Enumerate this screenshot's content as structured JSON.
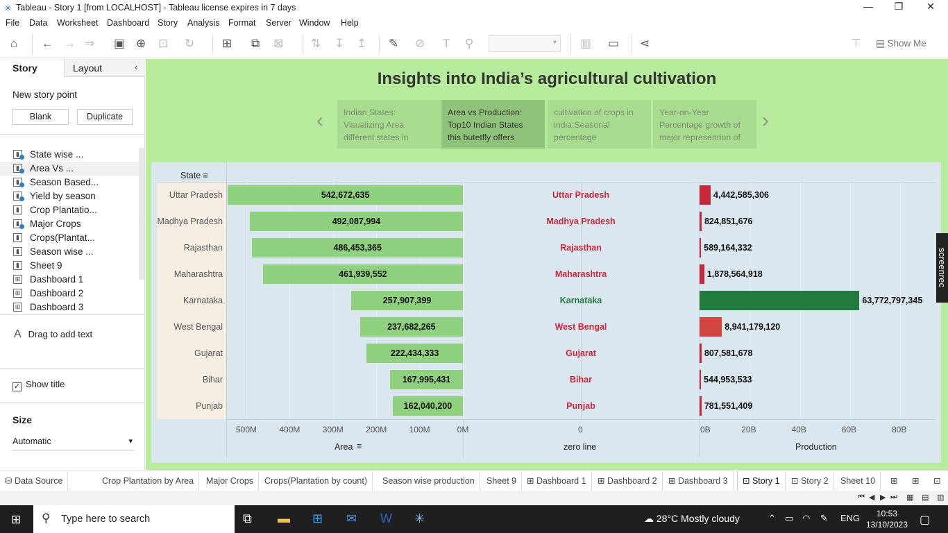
{
  "window": {
    "title": "Tableau - Story 1 [from LOCALHOST] - Tableau license expires in 7 days"
  },
  "menu": [
    "File",
    "Data",
    "Worksheet",
    "Dashboard",
    "Story",
    "Analysis",
    "Format",
    "Server",
    "Window",
    "Help"
  ],
  "toolbar": {
    "show_me": "Show Me"
  },
  "left_pane": {
    "tab_story": "Story",
    "tab_layout": "Layout",
    "new_story_point": "New story point",
    "blank": "Blank",
    "duplicate": "Duplicate",
    "items": [
      {
        "label": "State wise ...",
        "type": "sheet",
        "used": true
      },
      {
        "label": "Area Vs ...",
        "type": "sheet",
        "used": true
      },
      {
        "label": "Season Based...",
        "type": "sheet",
        "used": true
      },
      {
        "label": "Yield by season",
        "type": "sheet",
        "used": true
      },
      {
        "label": "Crop Plantatio...",
        "type": "sheet",
        "used": false
      },
      {
        "label": "Major Crops",
        "type": "sheet",
        "used": true
      },
      {
        "label": "Crops(Plantat...",
        "type": "sheet",
        "used": false
      },
      {
        "label": "Season wise ...",
        "type": "sheet",
        "used": false
      },
      {
        "label": "Sheet 9",
        "type": "sheet",
        "used": false
      },
      {
        "label": "Dashboard 1",
        "type": "dashboard",
        "used": false
      },
      {
        "label": "Dashboard 2",
        "type": "dashboard",
        "used": false
      },
      {
        "label": "Dashboard 3",
        "type": "dashboard",
        "used": false
      }
    ],
    "drag_text": "Drag to add text",
    "show_title": "Show title",
    "size_label": "Size",
    "size_value": "Automatic"
  },
  "story": {
    "title": "Insights into India’s agricultural cultivation",
    "points": [
      "Indian States: Visualizing Area different states in",
      "Area vs Production: Top10 Indian States this butetfly offers",
      "cultivation of crops in india:Seasonal percentage",
      "Year-on-Year Percentage  growth of major represenrion of"
    ],
    "active_point": 1
  },
  "viz": {
    "row_header": "State",
    "area_axis_title": "Area",
    "zero_axis_title": "zero line",
    "production_axis_title": "Production",
    "area_ticks": [
      "500M",
      "400M",
      "300M",
      "200M",
      "100M",
      "0M"
    ],
    "zero_tick": "0",
    "production_ticks": [
      "0B",
      "20B",
      "40B",
      "60B",
      "80B"
    ]
  },
  "chart_data": {
    "type": "bar",
    "categories": [
      "Uttar Pradesh",
      "Madhya Pradesh",
      "Rajasthan",
      "Maharashtra",
      "Karnataka",
      "West Bengal",
      "Gujarat",
      "Bihar",
      "Punjab"
    ],
    "series": [
      {
        "name": "Area",
        "values": [
          542672635,
          492087994,
          486453365,
          461939552,
          257907399,
          237682265,
          222434333,
          167995431,
          162040200
        ],
        "labels": [
          "542,672,635",
          "492,087,994",
          "486,453,365",
          "461,939,552",
          "257,907,399",
          "237,682,265",
          "222,434,333",
          "167,995,431",
          "162,040,200"
        ]
      },
      {
        "name": "Production",
        "values": [
          4442585306,
          824851676,
          589164332,
          1878564918,
          63772797345,
          8941179120,
          807581678,
          544953533,
          781551409
        ],
        "labels": [
          "4,442,585,306",
          "824,851,676",
          "589,164,332",
          "1,878,564,918",
          "63,772,797,345",
          "8,941,179,120",
          "807,581,678",
          "544,953,533",
          "781,551,409"
        ]
      }
    ],
    "area_range": [
      0,
      550000000
    ],
    "production_range": [
      0,
      85000000000
    ],
    "colors": {
      "area": "#8fd17f",
      "production_low": "#c8283c",
      "production_high": "#217a3e",
      "label_low": "#c8283c",
      "label_high": "#217a3e"
    }
  },
  "sheet_tabs": [
    "Data Source",
    "Crop Plantation by Area",
    "Major Crops",
    "Crops(Plantation by count)",
    "Season wise production",
    "Sheet 9",
    "Dashboard 1",
    "Dashboard 2",
    "Dashboard 3",
    "Story 1",
    "Story 2",
    "Sheet 10"
  ],
  "active_tab": "Story 1",
  "taskbar": {
    "search_placeholder": "Type here to search",
    "weather": "28°C  Mostly cloudy",
    "lang": "ENG",
    "time": "10:53",
    "date": "13/10/2023"
  },
  "overlay": {
    "screenrec": "screenrec"
  }
}
